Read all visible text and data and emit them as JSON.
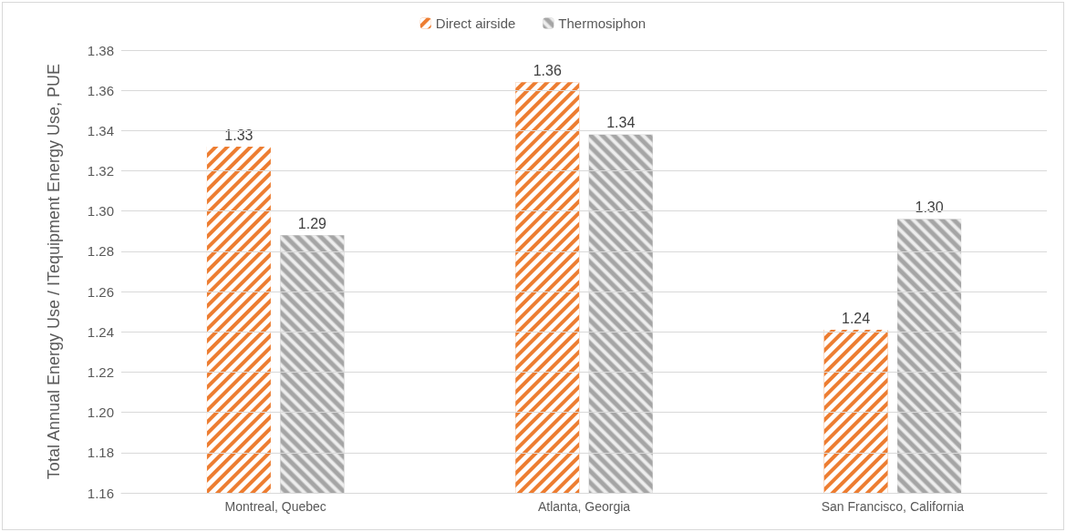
{
  "chart_data": {
    "type": "bar",
    "ylabel": "Total Annual Energy Use / ITequipment Energy Use, PUE",
    "categories": [
      "Montreal, Quebec",
      "Atlanta, Georgia",
      "San Francisco, California"
    ],
    "series": [
      {
        "name": "Direct airside",
        "color": "#ed7d31",
        "values": [
          1.332,
          1.364,
          1.241
        ],
        "value_labels": [
          "1.33",
          "1.36",
          "1.24"
        ]
      },
      {
        "name": "Thermosiphon",
        "color": "#a5a5a5",
        "values": [
          1.288,
          1.338,
          1.296
        ],
        "value_labels": [
          "1.29",
          "1.34",
          "1.30"
        ]
      }
    ],
    "ylim": [
      1.16,
      1.38
    ],
    "yticks": [
      {
        "value": 1.16,
        "label": "1.16"
      },
      {
        "value": 1.18,
        "label": "1.18"
      },
      {
        "value": 1.2,
        "label": "1.20"
      },
      {
        "value": 1.22,
        "label": "1.22"
      },
      {
        "value": 1.24,
        "label": "1.24"
      },
      {
        "value": 1.26,
        "label": "1.26"
      },
      {
        "value": 1.28,
        "label": "1.28"
      },
      {
        "value": 1.3,
        "label": "1.30"
      },
      {
        "value": 1.32,
        "label": "1.32"
      },
      {
        "value": 1.34,
        "label": "1.34"
      },
      {
        "value": 1.36,
        "label": "1.36"
      },
      {
        "value": 1.38,
        "label": "1.38"
      }
    ],
    "grid": "y",
    "legend": "top"
  }
}
